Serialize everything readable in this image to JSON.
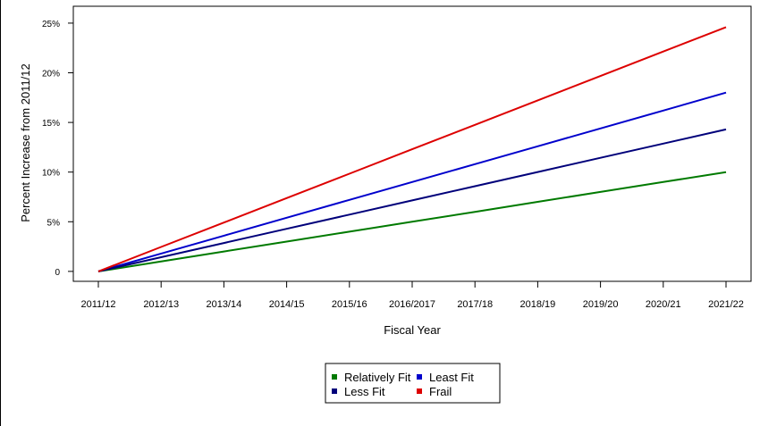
{
  "chart_data": {
    "type": "line",
    "title": "",
    "xlabel": "Fiscal Year",
    "ylabel": "Percent Increase from 2011/12",
    "categories": [
      "2011/12",
      "2012/13",
      "2013/14",
      "2014/15",
      "2015/16",
      "2016/2017",
      "2017/18",
      "2018/19",
      "2019/20",
      "2020/21",
      "2021/22"
    ],
    "y_ticks": [
      0,
      5,
      10,
      15,
      20,
      25
    ],
    "y_tick_labels": [
      "0",
      "5%",
      "10%",
      "15%",
      "20%",
      "25%"
    ],
    "ylim": [
      -1.0,
      26.7
    ],
    "grid": false,
    "legend_position": "bottom-center",
    "series": [
      {
        "name": "Relatively Fit",
        "color": "#007a00",
        "values": [
          0,
          1.0,
          2.0,
          3.0,
          4.0,
          5.0,
          6.0,
          7.0,
          8.0,
          9.0,
          10.0
        ]
      },
      {
        "name": "Least Fit",
        "color": "#0000cc",
        "values": [
          0,
          1.8,
          3.6,
          5.4,
          7.2,
          9.0,
          10.8,
          12.6,
          14.4,
          16.2,
          18.0
        ]
      },
      {
        "name": "Less Fit",
        "color": "#00007a",
        "values": [
          0,
          1.43,
          2.86,
          4.29,
          5.72,
          7.15,
          8.58,
          10.01,
          11.44,
          12.87,
          14.3
        ]
      },
      {
        "name": "Frail",
        "color": "#dd0000",
        "values": [
          0,
          2.46,
          4.92,
          7.38,
          9.84,
          12.3,
          14.76,
          17.22,
          19.68,
          22.14,
          24.6
        ]
      }
    ]
  }
}
